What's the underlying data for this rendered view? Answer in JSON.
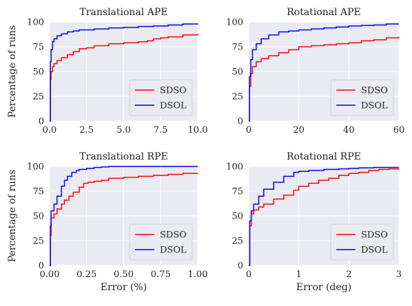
{
  "chart_data": [
    {
      "type": "line",
      "title": "Translational APE",
      "xlabel": "",
      "ylabel": "Percentage of runs",
      "xlim": [
        0,
        10
      ],
      "ylim": [
        0,
        100
      ],
      "xticks": [
        0,
        2.5,
        5,
        7.5,
        10
      ],
      "xtick_labels": [
        "0.0",
        "2.5",
        "5.0",
        "7.5",
        "10.0"
      ],
      "yticks": [
        0,
        25,
        50,
        75,
        100
      ],
      "ytick_labels": [
        "0",
        "25",
        "50",
        "75",
        "100"
      ],
      "grid": true,
      "legend": "bottom-right",
      "series": [
        {
          "name": "SDSO",
          "color": "#ff0000",
          "x": [
            0,
            0.05,
            0.1,
            0.2,
            0.3,
            0.5,
            0.8,
            1.2,
            1.6,
            2.0,
            2.5,
            3.0,
            4.0,
            5.0,
            6.0,
            6.6,
            7.0,
            7.5,
            8.0,
            9.0,
            10.0
          ],
          "y": [
            0,
            42,
            50,
            55,
            58,
            61,
            64,
            67,
            70,
            73,
            74,
            76,
            78,
            79,
            80,
            81,
            83,
            84,
            85,
            87,
            88
          ]
        },
        {
          "name": "DSOL",
          "color": "#0000ff",
          "x": [
            0,
            0.05,
            0.1,
            0.2,
            0.3,
            0.5,
            0.8,
            1.2,
            1.6,
            2.0,
            3.0,
            4.0,
            5.0,
            6.0,
            7.0,
            8.0,
            9.0,
            10.0
          ],
          "y": [
            0,
            60,
            72,
            80,
            83,
            86,
            88,
            90,
            91,
            92,
            93,
            94,
            94.5,
            95.5,
            96,
            97,
            98,
            98.5
          ]
        }
      ]
    },
    {
      "type": "line",
      "title": "Rotational APE",
      "xlabel": "",
      "ylabel": "",
      "xlim": [
        0,
        60
      ],
      "ylim": [
        0,
        100
      ],
      "xticks": [
        0,
        20,
        40,
        60
      ],
      "xtick_labels": [
        "0",
        "20",
        "40",
        "60"
      ],
      "yticks": [
        0,
        25,
        50,
        75,
        100
      ],
      "ytick_labels": [
        "0",
        "25",
        "50",
        "75",
        "100"
      ],
      "grid": true,
      "legend": "bottom-right",
      "series": [
        {
          "name": "SDSO",
          "color": "#ff0000",
          "x": [
            0,
            0.3,
            0.8,
            1.5,
            3,
            5,
            8,
            12,
            16,
            20,
            25,
            30,
            35,
            40,
            45,
            50,
            55,
            60
          ],
          "y": [
            0,
            35,
            48,
            55,
            60,
            63,
            66,
            69,
            72,
            75,
            76,
            77,
            78,
            79,
            81,
            82,
            84,
            85
          ]
        },
        {
          "name": "DSOL",
          "color": "#0000ff",
          "x": [
            0,
            0.3,
            0.8,
            1.5,
            3,
            5,
            8,
            12,
            16,
            20,
            25,
            30,
            35,
            40,
            45,
            50,
            55,
            60
          ],
          "y": [
            0,
            45,
            62,
            72,
            78,
            83,
            87,
            90,
            91,
            92,
            93,
            94,
            95,
            96,
            96.5,
            97,
            98,
            98
          ]
        }
      ]
    },
    {
      "type": "line",
      "title": "Translational RPE",
      "xlabel": "Error (%)",
      "ylabel": "Percentage of runs",
      "xlim": [
        0,
        1
      ],
      "ylim": [
        0,
        100
      ],
      "xticks": [
        0,
        0.25,
        0.5,
        0.75,
        1
      ],
      "xtick_labels": [
        "0.00",
        "0.25",
        "0.50",
        "0.75",
        "1.00"
      ],
      "yticks": [
        0,
        25,
        50,
        75,
        100
      ],
      "ytick_labels": [
        "0",
        "25",
        "50",
        "75",
        "100"
      ],
      "grid": true,
      "legend": "bottom-right",
      "series": [
        {
          "name": "SDSO",
          "color": "#ff0000",
          "x": [
            0,
            0.005,
            0.01,
            0.03,
            0.05,
            0.08,
            0.1,
            0.13,
            0.16,
            0.2,
            0.23,
            0.26,
            0.3,
            0.35,
            0.4,
            0.5,
            0.6,
            0.7,
            0.8,
            0.9,
            1.0
          ],
          "y": [
            0,
            30,
            48,
            52,
            57,
            62,
            66,
            70,
            74,
            79,
            83,
            84,
            85,
            86,
            88,
            89,
            90,
            91,
            92,
            93,
            93.5
          ]
        },
        {
          "name": "DSOL",
          "color": "#0000ff",
          "x": [
            0,
            0.005,
            0.01,
            0.03,
            0.05,
            0.08,
            0.1,
            0.12,
            0.15,
            0.18,
            0.2,
            0.25,
            0.3,
            0.35,
            0.4,
            0.6,
            0.8,
            1.0
          ],
          "y": [
            0,
            40,
            55,
            62,
            70,
            80,
            86,
            90,
            94,
            96,
            97,
            98,
            99,
            99.5,
            100,
            100,
            100,
            100
          ]
        }
      ]
    },
    {
      "type": "line",
      "title": "Rotational RPE",
      "xlabel": "Error (deg)",
      "ylabel": "",
      "xlim": [
        0,
        3
      ],
      "ylim": [
        0,
        100
      ],
      "xticks": [
        0,
        1,
        2,
        3
      ],
      "xtick_labels": [
        "0",
        "1",
        "2",
        "3"
      ],
      "yticks": [
        0,
        25,
        50,
        75,
        100
      ],
      "ytick_labels": [
        "0",
        "25",
        "50",
        "75",
        "100"
      ],
      "grid": true,
      "legend": "bottom-right",
      "series": [
        {
          "name": "SDSO",
          "color": "#ff0000",
          "x": [
            0,
            0.02,
            0.05,
            0.1,
            0.2,
            0.3,
            0.5,
            0.7,
            0.9,
            1.0,
            1.2,
            1.4,
            1.6,
            1.8,
            2.0,
            2.2,
            2.4,
            2.6,
            2.8,
            3.0
          ],
          "y": [
            0,
            40,
            52,
            56,
            59,
            62,
            67,
            71,
            76,
            80,
            83,
            86,
            88,
            91,
            93,
            94,
            96,
            97,
            97.5,
            98
          ]
        },
        {
          "name": "DSOL",
          "color": "#0000ff",
          "x": [
            0,
            0.02,
            0.05,
            0.1,
            0.2,
            0.3,
            0.5,
            0.7,
            0.9,
            1.0,
            1.2,
            1.5,
            1.8,
            2.0,
            2.2,
            2.5,
            2.8,
            3.0
          ],
          "y": [
            0,
            45,
            55,
            62,
            70,
            77,
            84,
            90,
            94,
            95,
            96,
            97,
            97.5,
            98,
            98.5,
            99,
            99,
            99
          ]
        }
      ]
    }
  ]
}
